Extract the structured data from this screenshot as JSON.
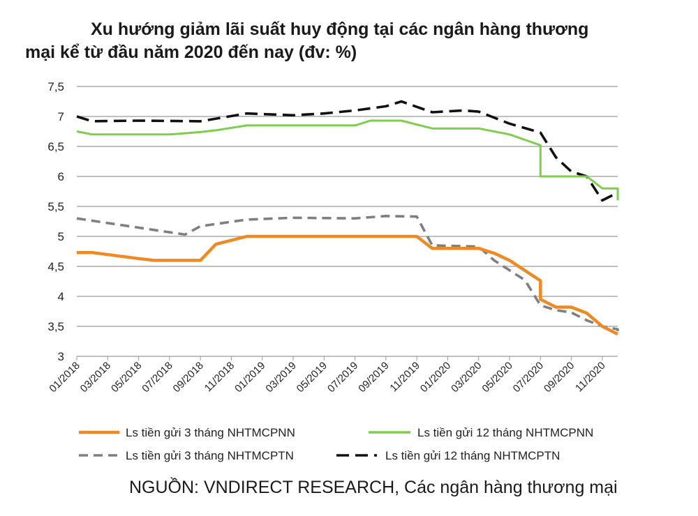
{
  "title_line1": "Xu hướng giảm lãi suất huy động tại các ngân hàng thương",
  "title_line2": "mại kể từ đầu năm 2020 đến nay (đv: %)",
  "source": "NGUỒN: VNDIRECT RESEARCH, Các ngân hàng thương mại",
  "chart_data": {
    "type": "line",
    "title": "Xu hướng giảm lãi suất huy động tại các ngân hàng thương mại kể từ đầu năm 2020 đến nay (đv: %)",
    "xlabel": "",
    "ylabel": "",
    "ylim": [
      3,
      7.5
    ],
    "yticks": [
      "3",
      "3,5",
      "4",
      "4,5",
      "5",
      "5,5",
      "6",
      "6,5",
      "7",
      "7,5"
    ],
    "ytick_values": [
      3,
      3.5,
      4,
      4.5,
      5,
      5.5,
      6,
      6.5,
      7,
      7.5
    ],
    "x_range": [
      "01/2018",
      "12/2020"
    ],
    "xticks": [
      "01/2018",
      "03/2018",
      "05/2018",
      "07/2018",
      "09/2018",
      "11/2018",
      "01/2019",
      "03/2019",
      "05/2019",
      "07/2019",
      "09/2019",
      "11/2019",
      "01/2020",
      "03/2020",
      "05/2020",
      "07/2020",
      "09/2020",
      "11/2020"
    ],
    "grid": "horizontal",
    "legend_position": "bottom",
    "series": [
      {
        "name": "Ls tiền gửi 3 tháng NHTMCPNN",
        "color": "#ef8a22",
        "style": "solid",
        "points": [
          [
            "01/2018",
            4.73
          ],
          [
            "02/2018",
            4.73
          ],
          [
            "05/2018",
            4.63
          ],
          [
            "06/2018",
            4.6
          ],
          [
            "09/2018",
            4.6
          ],
          [
            "10/2018",
            4.87
          ],
          [
            "12/2018",
            5.0
          ],
          [
            "11/2019",
            5.0
          ],
          [
            "12/2019",
            4.8
          ],
          [
            "03/2020",
            4.8
          ],
          [
            "04/2020",
            4.72
          ],
          [
            "05/2020",
            4.6
          ],
          [
            "07/2020",
            4.26
          ],
          [
            "07/2020",
            3.95
          ],
          [
            "08/2020",
            3.82
          ],
          [
            "09/2020",
            3.82
          ],
          [
            "10/2020",
            3.72
          ],
          [
            "11/2020",
            3.5
          ],
          [
            "12/2020",
            3.37
          ],
          [
            "12/2020",
            3.37
          ]
        ]
      },
      {
        "name": "Ls tiền gửi 12 tháng NHTMCPNN",
        "color": "#7dcf4a",
        "style": "solid",
        "points": [
          [
            "01/2018",
            6.75
          ],
          [
            "02/2018",
            6.7
          ],
          [
            "07/2018",
            6.7
          ],
          [
            "09/2018",
            6.74
          ],
          [
            "10/2018",
            6.77
          ],
          [
            "12/2018",
            6.85
          ],
          [
            "07/2019",
            6.85
          ],
          [
            "08/2019",
            6.93
          ],
          [
            "10/2019",
            6.93
          ],
          [
            "12/2019",
            6.8
          ],
          [
            "03/2020",
            6.8
          ],
          [
            "05/2020",
            6.7
          ],
          [
            "07/2020",
            6.52
          ],
          [
            "07/2020",
            6.0
          ],
          [
            "09/2020",
            6.0
          ],
          [
            "10/2020",
            6.0
          ],
          [
            "11/2020",
            5.8
          ],
          [
            "12/2020",
            5.8
          ],
          [
            "12/2020",
            5.6
          ]
        ]
      },
      {
        "name": "Ls tiền gửi 3 tháng NHTMCPTN",
        "color": "#7f7f7f",
        "style": "dashed",
        "points": [
          [
            "01/2018",
            5.3
          ],
          [
            "08/2018",
            5.03
          ],
          [
            "09/2018",
            5.17
          ],
          [
            "12/2018",
            5.28
          ],
          [
            "03/2019",
            5.31
          ],
          [
            "07/2019",
            5.3
          ],
          [
            "09/2019",
            5.34
          ],
          [
            "11/2019",
            5.33
          ],
          [
            "12/2019",
            4.85
          ],
          [
            "03/2020",
            4.83
          ],
          [
            "04/2020",
            4.6
          ],
          [
            "06/2020",
            4.27
          ],
          [
            "07/2020",
            3.85
          ],
          [
            "08/2020",
            3.77
          ],
          [
            "09/2020",
            3.73
          ],
          [
            "10/2020",
            3.6
          ],
          [
            "11/2020",
            3.5
          ],
          [
            "12/2020",
            3.45
          ],
          [
            "12/2020",
            3.42
          ]
        ]
      },
      {
        "name": "Ls tiền gửi 12 tháng NHTMCPTN",
        "color": "#111111",
        "style": "dashed",
        "points": [
          [
            "01/2018",
            7.0
          ],
          [
            "02/2018",
            6.92
          ],
          [
            "05/2018",
            6.93
          ],
          [
            "09/2018",
            6.92
          ],
          [
            "12/2018",
            7.05
          ],
          [
            "03/2019",
            7.02
          ],
          [
            "05/2019",
            7.05
          ],
          [
            "07/2019",
            7.1
          ],
          [
            "09/2019",
            7.17
          ],
          [
            "10/2019",
            7.25
          ],
          [
            "12/2019",
            7.07
          ],
          [
            "02/2020",
            7.1
          ],
          [
            "03/2020",
            7.08
          ],
          [
            "05/2020",
            6.88
          ],
          [
            "07/2020",
            6.73
          ],
          [
            "08/2020",
            6.32
          ],
          [
            "09/2020",
            6.08
          ],
          [
            "10/2020",
            6.0
          ],
          [
            "11/2020",
            5.6
          ],
          [
            "12/2020",
            5.73
          ]
        ]
      }
    ]
  }
}
